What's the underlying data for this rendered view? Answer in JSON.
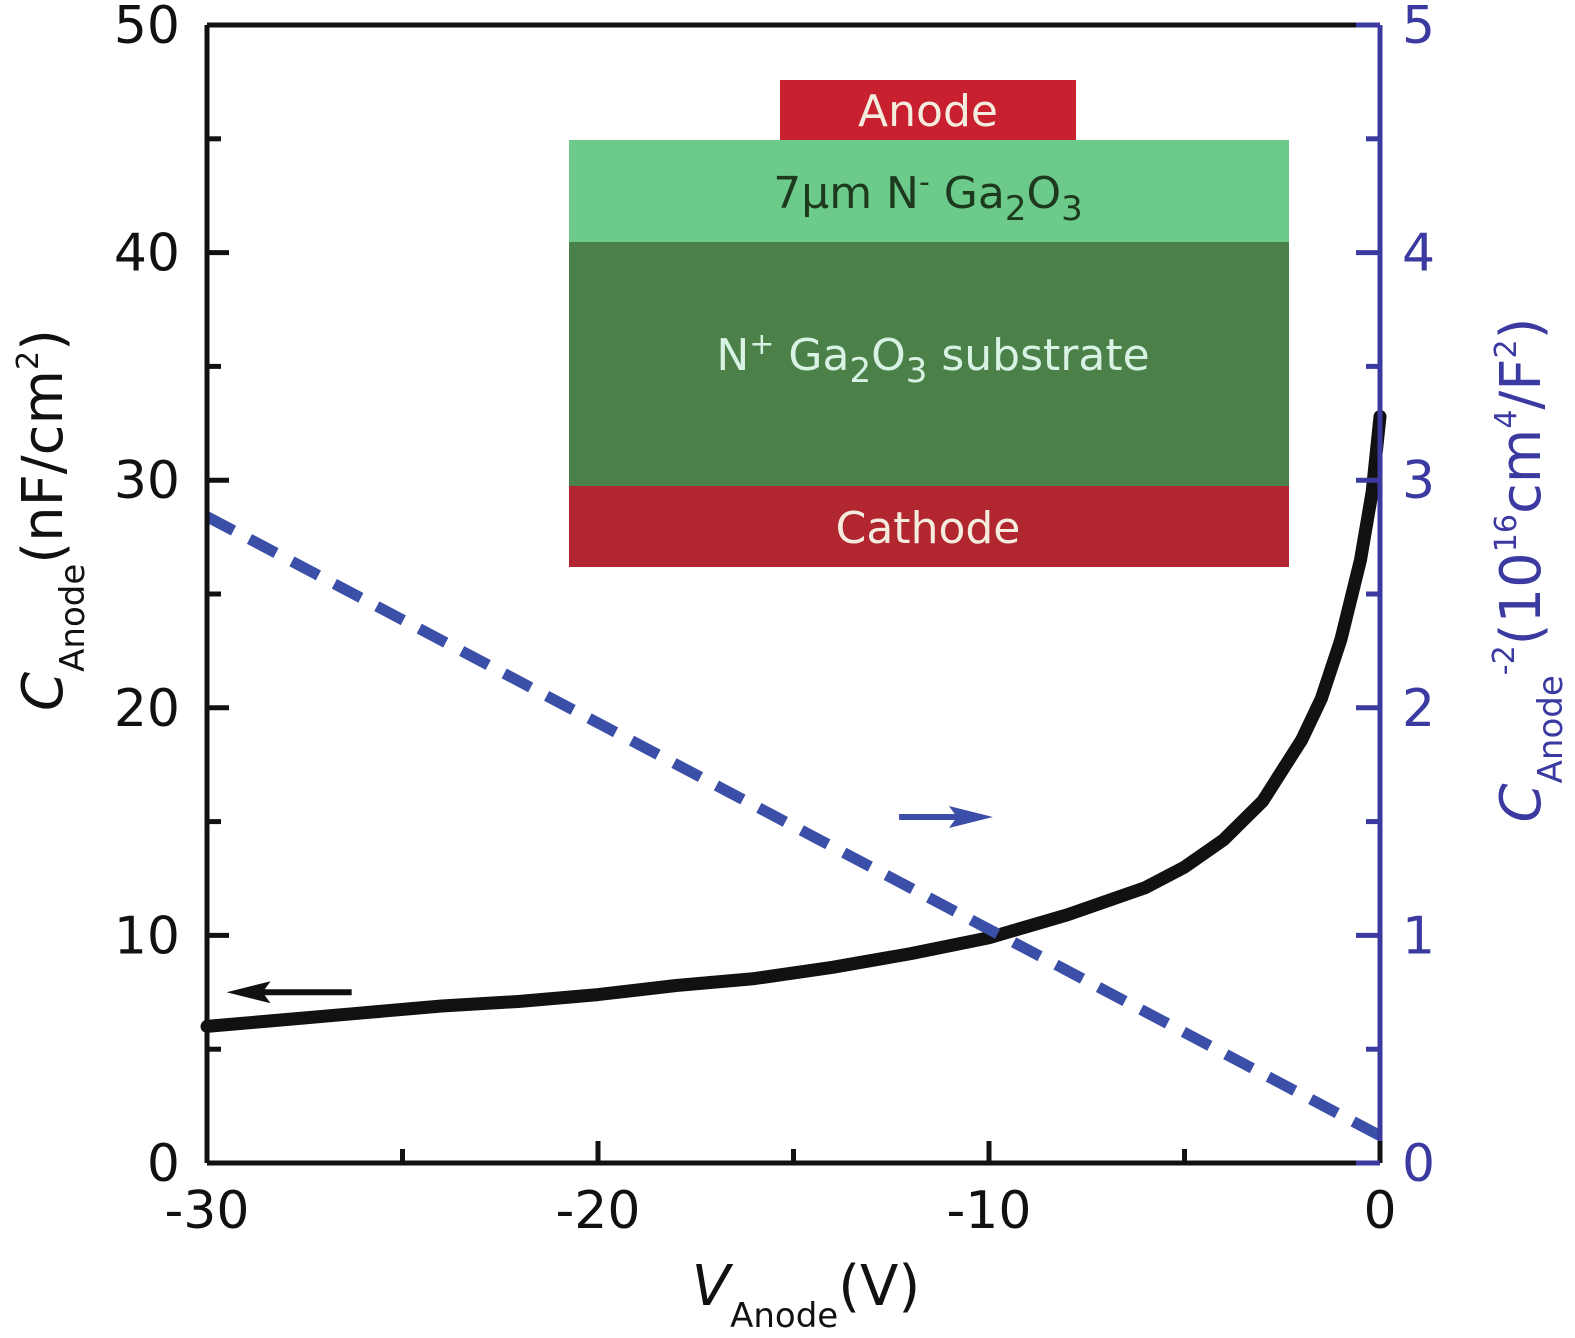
{
  "chart_data": {
    "type": "line",
    "x_axis": {
      "var": "V",
      "sub": "Anode",
      "unit": "(V)",
      "range": [
        -30,
        0
      ],
      "ticks": [
        "-30",
        "-20",
        "-10",
        "0"
      ]
    },
    "y_left": {
      "var": "C",
      "sub": "Anode",
      "unit_pre": "(nF/cm",
      "unit_sup": "2",
      "unit_post": ")",
      "range": [
        0,
        50
      ],
      "ticks": [
        "0",
        "10",
        "20",
        "30",
        "40",
        "50"
      ]
    },
    "y_right": {
      "var": "C",
      "sub": "Anode",
      "sup": "-2",
      "unit_a": "(10",
      "unit_a_sup": "16",
      "unit_b": "cm",
      "unit_b_sup": "4",
      "unit_c": "/F",
      "unit_c_sup": "2",
      "unit_d": ")",
      "range": [
        0,
        5
      ],
      "ticks": [
        "0",
        "1",
        "2",
        "3",
        "4",
        "5"
      ],
      "color": "#3b3aa0"
    },
    "series": [
      {
        "axis": "left",
        "style": "solid",
        "color": "#111111",
        "x": [
          -30,
          -28,
          -26,
          -24,
          -22,
          -20,
          -18,
          -16,
          -14,
          -12,
          -10,
          -8,
          -6,
          -5,
          -4,
          -3,
          -2,
          -1.5,
          -1,
          -0.5,
          -0.2,
          0
        ],
        "y": [
          6.0,
          6.3,
          6.6,
          6.9,
          7.1,
          7.4,
          7.8,
          8.1,
          8.6,
          9.2,
          9.9,
          10.9,
          12.1,
          13.0,
          14.2,
          15.9,
          18.6,
          20.4,
          23.0,
          26.5,
          29.5,
          32.8
        ]
      },
      {
        "axis": "right",
        "style": "dashed",
        "color": "#3b4fa8",
        "x": [
          -30,
          0
        ],
        "y": [
          2.84,
          0.12
        ]
      }
    ],
    "annotations": [
      {
        "direction": "left",
        "color": "#111111",
        "x_from": -26.3,
        "x_to": -29.5,
        "y_left": 7.5
      },
      {
        "direction": "right",
        "color": "#3b4fa8",
        "x_from": -12.3,
        "x_to": -9.9,
        "y_left": 15.2
      }
    ],
    "inset": {
      "layers": [
        {
          "label": "Anode",
          "fill": "#c8202f",
          "text_color": "#f5ece0"
        },
        {
          "label_main": "7µm N",
          "label_sup": "-",
          "label_after": " Ga",
          "sub1": "2",
          "mid": "O",
          "sub2": "3",
          "fill": "#6ccb8a",
          "text_color": "#1e3a1e"
        },
        {
          "label_main": "N",
          "label_sup": "+",
          "label_after": " Ga",
          "sub1": "2",
          "mid": "O",
          "sub2": "3",
          "tail": " substrate",
          "fill": "#4b8148",
          "text_color": "#d8f2e4"
        },
        {
          "label": "Cathode",
          "fill": "#b2272f",
          "text_color": "#f5ece0"
        }
      ]
    }
  }
}
